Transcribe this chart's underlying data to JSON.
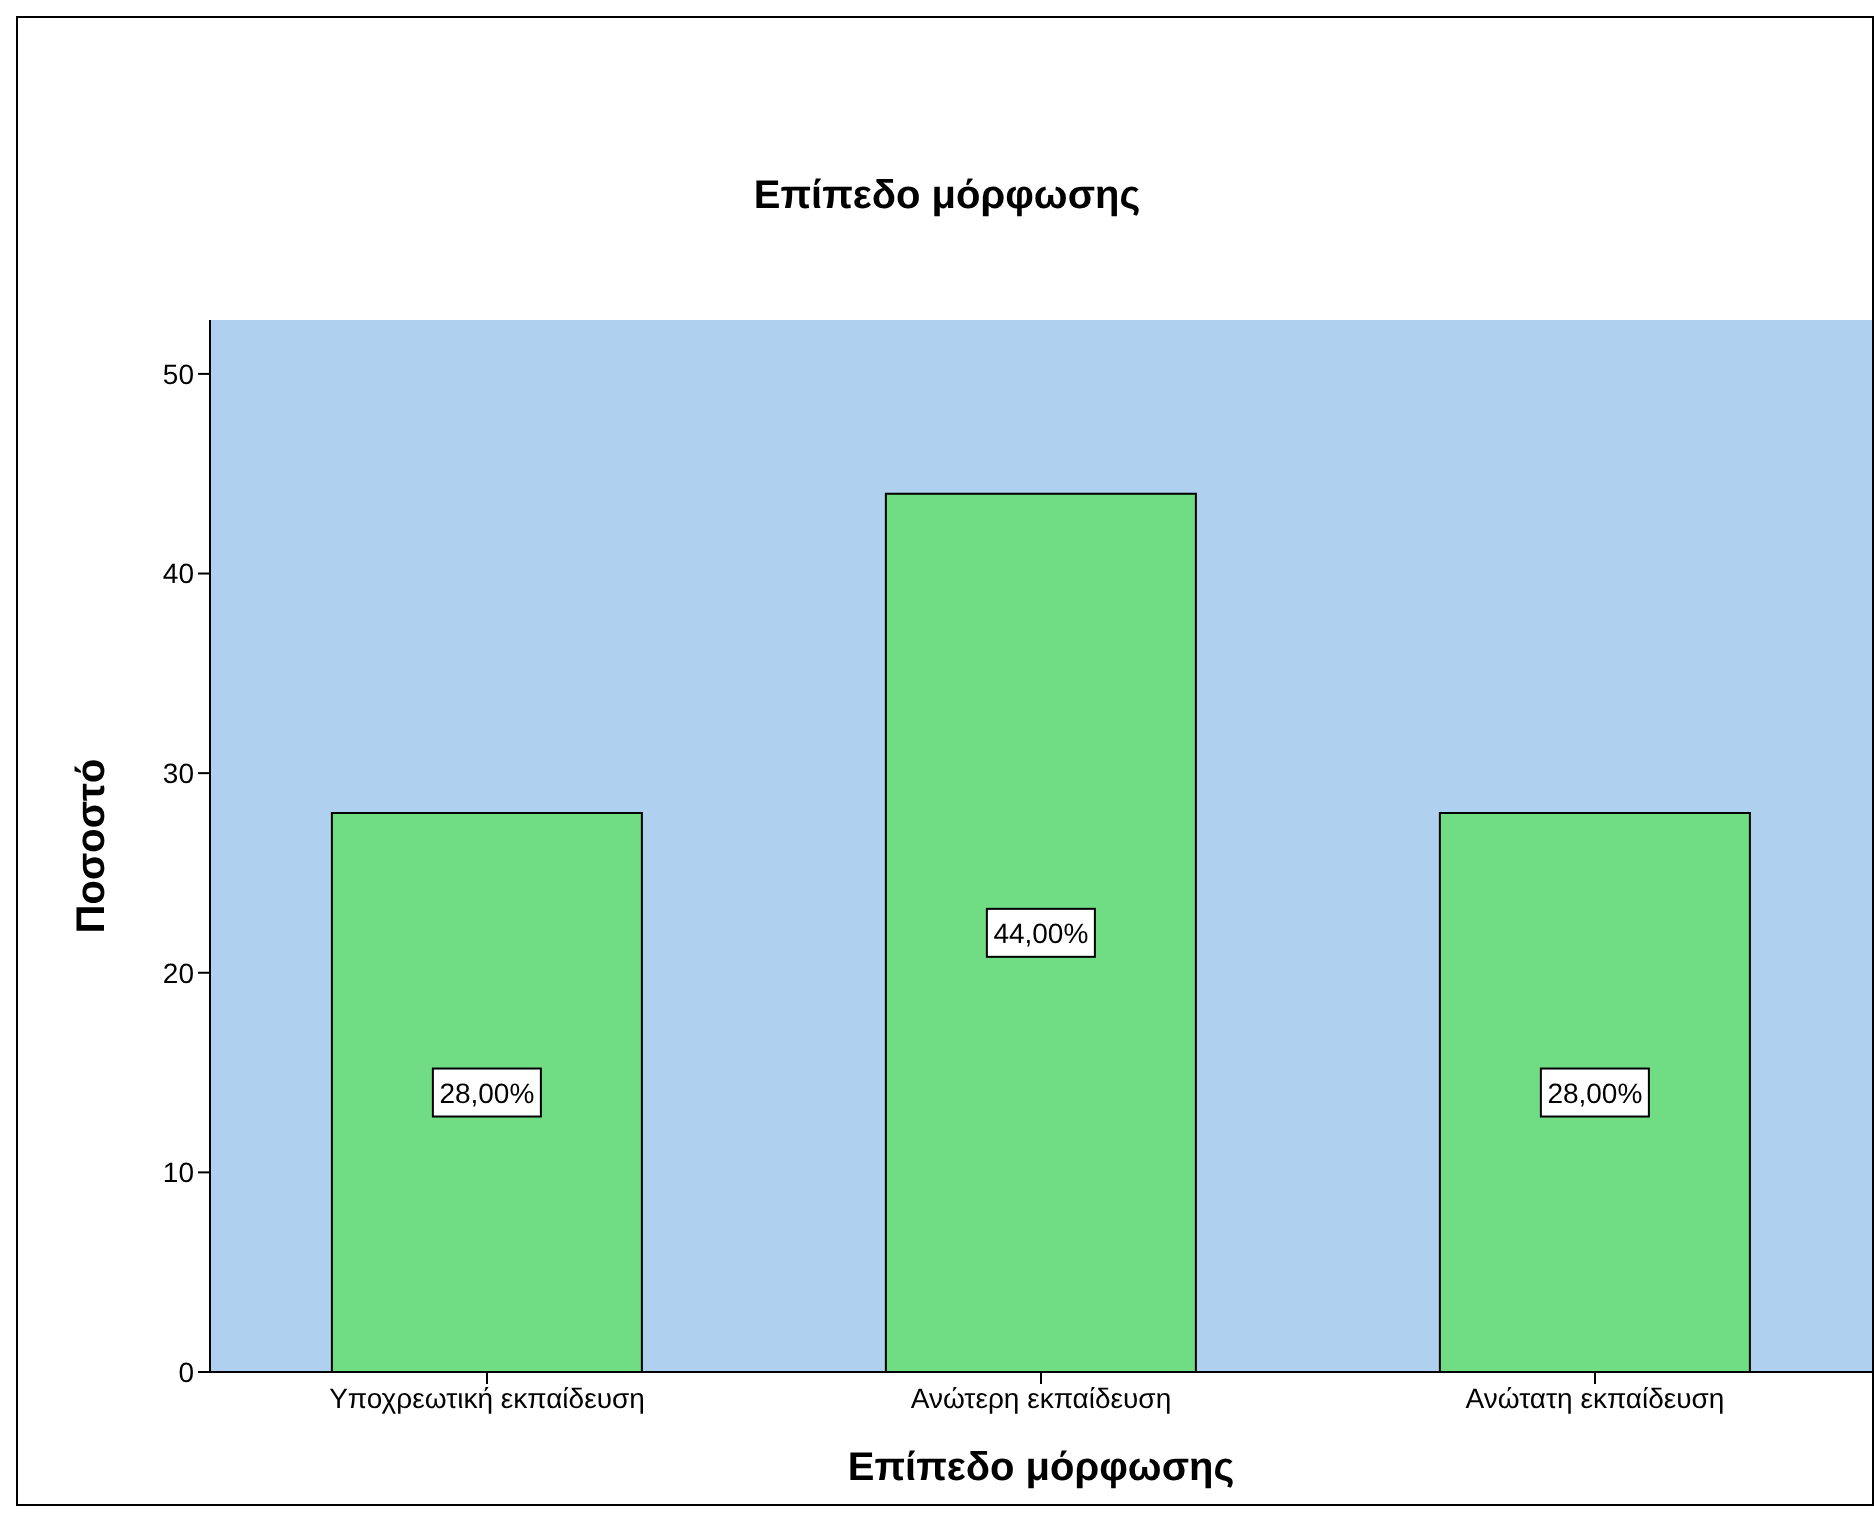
{
  "chart_data": {
    "type": "bar",
    "title": "Επίπεδο μόρφωσης",
    "xlabel": "Επίπεδο μόρφωσης",
    "ylabel": "Ποσοστό",
    "categories": [
      "Υποχρεωτική εκπαίδευση",
      "Ανώτερη εκπαίδευση",
      "Ανώτατη εκπαίδευση"
    ],
    "values": [
      28,
      44,
      28
    ],
    "color": "#70dd85",
    "value_labels": [
      "28,00%",
      "44,00%",
      "28,00%"
    ],
    "ylim": [
      0,
      52.7
    ],
    "yticks": [
      0,
      10,
      20,
      30,
      40,
      50
    ],
    "grid": false
  }
}
